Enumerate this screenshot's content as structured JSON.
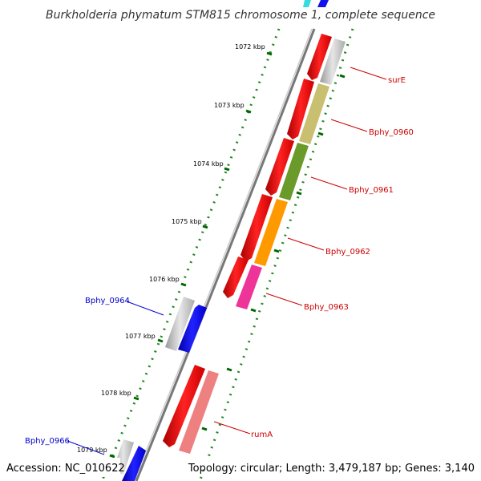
{
  "title": "Burkholderia phymatum STM815 chromosome 1, complete sequence",
  "footer": {
    "accession": "Accession: NC_010622",
    "topology": "Topology: circular; Length: 3,479,187 bp; Genes: 3,140"
  },
  "ruler": {
    "ticks": [
      "1072 kbp",
      "1073 kbp",
      "1074 kbp",
      "1075 kbp",
      "1076 kbp",
      "1077 kbp",
      "1078 kbp",
      "1079 kbp"
    ]
  },
  "genes": {
    "surE": "surE",
    "bphy0960": "Bphy_0960",
    "bphy0961": "Bphy_0961",
    "bphy0962": "Bphy_0962",
    "bphy0963": "Bphy_0963",
    "bphy0964": "Bphy_0964",
    "rumA": "rumA",
    "bphy0966": "Bphy_0966"
  },
  "colors": {
    "forward_cds": "#ee0000",
    "reverse_cds": "#0000ee",
    "grey": "#bbbbbb",
    "olive": "#c8c070",
    "green": "#6a9a2a",
    "orange": "#ff9900",
    "pink": "#ee3399",
    "salmon": "#ee8080",
    "backbone": "#888888",
    "tick": "#006600",
    "label_red": "#cc0000",
    "label_blue": "#0000cc"
  }
}
